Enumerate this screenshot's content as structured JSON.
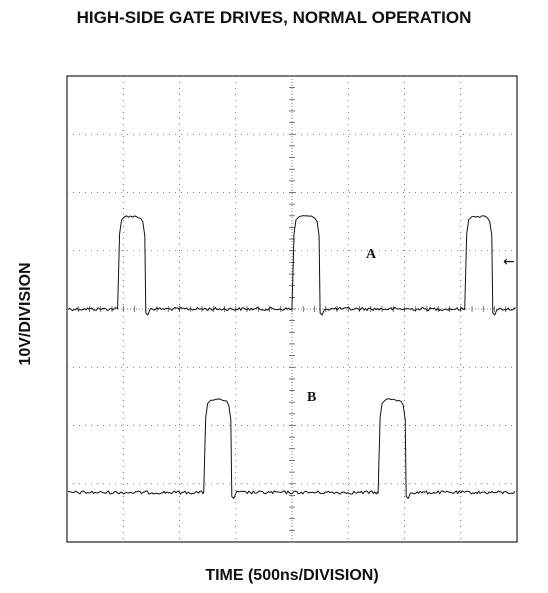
{
  "chart_data": {
    "type": "line",
    "title": "HIGH-SIDE GATE DRIVES, NORMAL OPERATION",
    "xlabel": "TIME (500ns/DIVISION)",
    "ylabel": "10V/DIVISION",
    "x_divisions": 8,
    "y_divisions": 8,
    "x_unit_per_division": "500ns",
    "y_unit_per_division": "10V",
    "grid": true,
    "series": [
      {
        "name": "A",
        "baseline_div": 4.0,
        "high_div": 5.6,
        "pulses": [
          {
            "start_div": 0.9,
            "end_div": 1.4
          },
          {
            "start_div": 4.0,
            "end_div": 4.5
          },
          {
            "start_div": 7.07,
            "end_div": 7.57
          }
        ]
      },
      {
        "name": "B",
        "baseline_div": 0.85,
        "high_div": 2.45,
        "pulses": [
          {
            "start_div": 2.43,
            "end_div": 2.93
          },
          {
            "start_div": 5.53,
            "end_div": 6.03
          }
        ]
      }
    ],
    "marker": "←"
  }
}
